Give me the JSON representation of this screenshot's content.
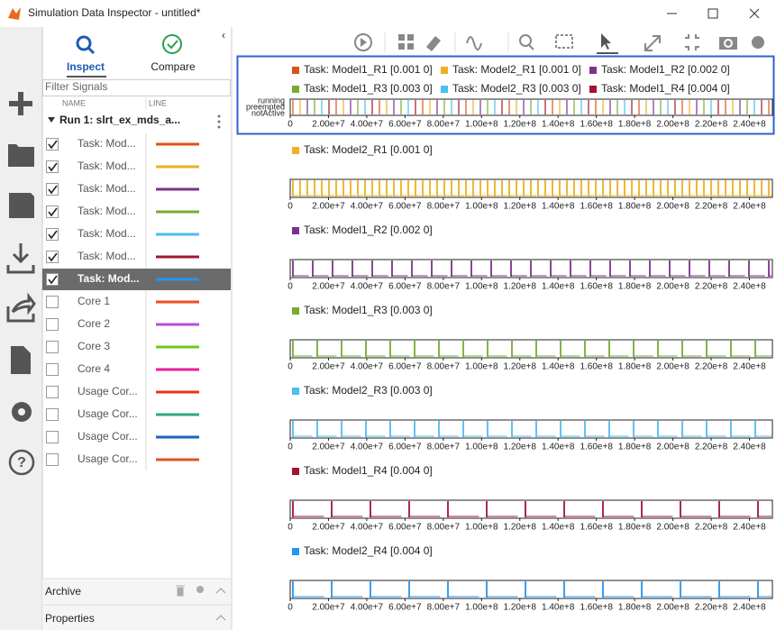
{
  "window_title": "Simulation Data Inspector - untitled*",
  "panel": {
    "tabs": [
      "Inspect",
      "Compare"
    ],
    "filter_placeholder": "Filter Signals",
    "columns": [
      "NAME",
      "LINE"
    ],
    "run_label": "Run 1: slrt_ex_mds_a...",
    "signals": [
      {
        "name": "Task: Mod...",
        "color": "#d95319",
        "checked": true
      },
      {
        "name": "Task: Mod...",
        "color": "#edb120",
        "checked": true
      },
      {
        "name": "Task: Mod...",
        "color": "#7e2f8e",
        "checked": true
      },
      {
        "name": "Task: Mod...",
        "color": "#77ac30",
        "checked": true
      },
      {
        "name": "Task: Mod...",
        "color": "#4dbeee",
        "checked": true
      },
      {
        "name": "Task: Mod...",
        "color": "#a2142f",
        "checked": true
      },
      {
        "name": "Task: Mod...",
        "color": "#2196f3",
        "checked": true,
        "selected": true
      },
      {
        "name": "Core 1",
        "color": "#f04e23",
        "checked": false
      },
      {
        "name": "Core 2",
        "color": "#b44fe0",
        "checked": false
      },
      {
        "name": "Core 3",
        "color": "#66cc22",
        "checked": false
      },
      {
        "name": "Core 4",
        "color": "#ee1e96",
        "checked": false
      },
      {
        "name": "Usage Cor...",
        "color": "#ee3311",
        "checked": false
      },
      {
        "name": "Usage Cor...",
        "color": "#2eaa77",
        "checked": false
      },
      {
        "name": "Usage Cor...",
        "color": "#1565b8",
        "checked": false
      },
      {
        "name": "Usage Cor...",
        "color": "#dd5522",
        "checked": false
      }
    ],
    "sections": [
      "Archive",
      "Properties"
    ]
  },
  "plots": {
    "axis": {
      "xlim": [
        0,
        252000000
      ],
      "xticks": [
        0,
        {
          "value": 20000000,
          "label": "2.00e+7"
        },
        {
          "value": 40000000,
          "label": "4.00e+7"
        },
        {
          "value": 60000000,
          "label": "6.00e+7"
        },
        {
          "value": 80000000,
          "label": "8.00e+7"
        },
        {
          "value": 100000000,
          "label": "1.00e+8"
        },
        {
          "value": 120000000,
          "label": "1.20e+8"
        },
        {
          "value": 140000000,
          "label": "1.40e+8"
        },
        {
          "value": 160000000,
          "label": "1.60e+8"
        },
        {
          "value": 180000000,
          "label": "1.80e+8"
        },
        {
          "value": 200000000,
          "label": "2.00e+8"
        },
        {
          "value": 220000000,
          "label": "2.20e+8"
        },
        {
          "value": 240000000,
          "label": "2.40e+8"
        }
      ]
    },
    "items": [
      {
        "legend": [
          {
            "name": "Task: Model1_R1 [0.001 0]",
            "color": "#d95319"
          },
          {
            "name": "Task: Model2_R1 [0.001 0]",
            "color": "#edb120"
          },
          {
            "name": "Task: Model1_R2 [0.002 0]",
            "color": "#7e2f8e"
          },
          {
            "name": "Task: Model1_R3 [0.003 0]",
            "color": "#77ac30"
          },
          {
            "name": "Task: Model2_R3 [0.003 0]",
            "color": "#4dbeee"
          },
          {
            "name": "Task: Model1_R4 [0.004 0]",
            "color": "#a2142f"
          }
        ],
        "ylabels": [
          "running",
          "preempted",
          "notActive"
        ]
      },
      {
        "legend": [
          {
            "name": "Task: Model2_R1 [0.001 0]",
            "color": "#edb120"
          }
        ]
      },
      {
        "legend": [
          {
            "name": "Task: Model1_R2 [0.002 0]",
            "color": "#7e2f8e"
          }
        ]
      },
      {
        "legend": [
          {
            "name": "Task: Model1_R3 [0.003 0]",
            "color": "#77ac30"
          }
        ]
      },
      {
        "legend": [
          {
            "name": "Task: Model2_R3 [0.003 0]",
            "color": "#4dbeee"
          }
        ]
      },
      {
        "legend": [
          {
            "name": "Task: Model1_R4 [0.004 0]",
            "color": "#a2142f"
          }
        ]
      },
      {
        "legend": [
          {
            "name": "Task: Model2_R4 [0.004 0]",
            "color": "#2196f3"
          }
        ]
      }
    ]
  }
}
